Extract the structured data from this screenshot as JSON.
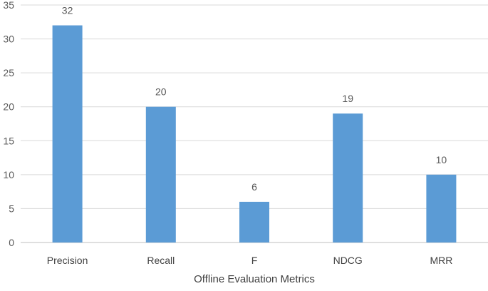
{
  "chart_data": {
    "type": "bar",
    "title": "",
    "xlabel": "Offline Evaluation Metrics",
    "ylabel": "",
    "categories": [
      "Precision",
      "Recall",
      "F",
      "NDCG",
      "MRR"
    ],
    "values": [
      32,
      20,
      6,
      19,
      10
    ],
    "data_labels": [
      "32",
      "20",
      "6",
      "19",
      "10"
    ],
    "y_ticks": [
      0,
      5,
      10,
      15,
      20,
      25,
      30,
      35
    ],
    "y_tick_labels": [
      "0",
      "5",
      "10",
      "15",
      "20",
      "25",
      "30",
      "35"
    ],
    "ylim": [
      0,
      35
    ],
    "grid": true,
    "legend": "none",
    "bar_color": "#5b9bd5"
  }
}
